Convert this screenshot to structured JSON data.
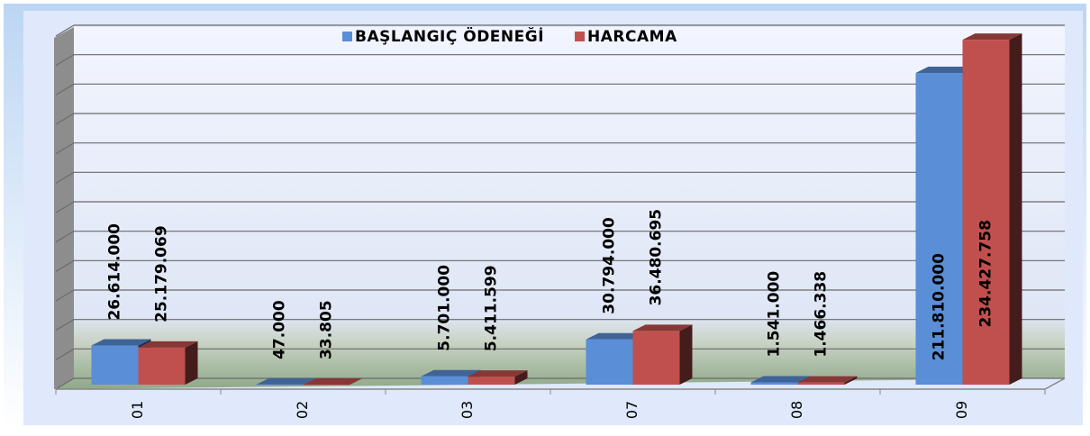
{
  "chart_data": {
    "type": "bar",
    "categories": [
      "01",
      "02",
      "03",
      "07",
      "08",
      "09"
    ],
    "series": [
      {
        "name": "BAŞLANGIÇ ÖDENEĞİ",
        "color": "#5a8ed6",
        "values": [
          26614000,
          47000,
          5701000,
          30794000,
          1541000,
          211810000
        ],
        "value_labels": [
          "26.614.000",
          "47.000",
          "5.701.000",
          "30.794.000",
          "1.541.000",
          "211.810.000"
        ]
      },
      {
        "name": "HARCAMA",
        "color": "#c0504d",
        "values": [
          25179069,
          33805,
          5411599,
          36480695,
          1466338,
          234427758
        ],
        "value_labels": [
          "25.179.069",
          "33.805",
          "5.411.599",
          "36.480.695",
          "1.466.338",
          "234.427.758"
        ]
      }
    ],
    "ylim": [
      0,
      240000000
    ],
    "yticks": [
      0,
      20000000,
      40000000,
      60000000,
      80000000,
      100000000,
      120000000,
      140000000,
      160000000,
      180000000,
      200000000,
      220000000,
      240000000
    ],
    "grid": true
  }
}
